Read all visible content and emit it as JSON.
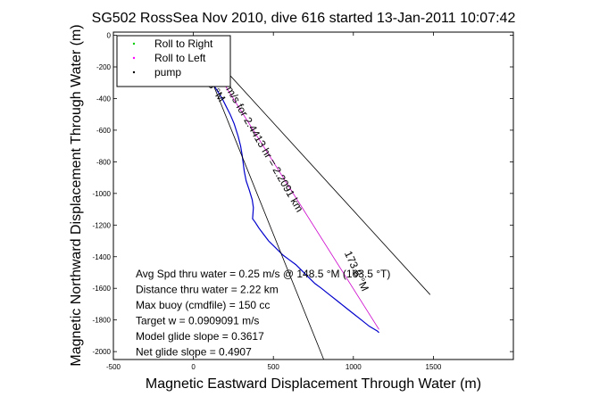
{
  "chart_data": {
    "type": "line",
    "title": "SG502 RossSea Nov 2010, dive 616 started 13-Jan-2011 10:07:42",
    "xlabel": "Magnetic Eastward Displacement Through Water (m)",
    "ylabel": "Magnetic Northward Displacement Through Water (m)",
    "xlim": [
      -500,
      2000
    ],
    "ylim": [
      -2050,
      20
    ],
    "xticks": [
      -500,
      0,
      500,
      1000,
      1500
    ],
    "yticks": [
      0,
      -200,
      -400,
      -600,
      -800,
      -1000,
      -1200,
      -1400,
      -1600,
      -1800,
      -2000
    ],
    "legend": {
      "position": "top-left",
      "entries": [
        {
          "label": "Roll to Right",
          "color": "#00cc00"
        },
        {
          "label": "Roll to Left",
          "color": "#ff00ff"
        },
        {
          "label": "pump",
          "color": "#000000"
        }
      ]
    },
    "series": [
      {
        "kind": "track",
        "color": "#0000cc",
        "x": [
          10,
          30,
          50,
          70,
          90,
          110,
          130,
          155,
          180,
          205,
          230,
          255,
          280,
          295,
          305,
          310,
          318,
          330,
          350,
          368,
          375,
          372,
          370,
          385,
          410,
          440,
          470,
          500,
          530,
          560,
          600,
          640,
          680,
          720,
          760,
          800,
          850,
          900,
          950,
          1000,
          1050,
          1100,
          1150,
          1160
        ],
        "y": [
          -10,
          -70,
          -140,
          -200,
          -250,
          -290,
          -320,
          -360,
          -400,
          -450,
          -500,
          -560,
          -640,
          -700,
          -760,
          -800,
          -860,
          -920,
          -980,
          -1040,
          -1090,
          -1130,
          -1160,
          -1180,
          -1220,
          -1260,
          -1300,
          -1330,
          -1360,
          -1390,
          -1420,
          -1450,
          -1490,
          -1530,
          -1570,
          -1600,
          -1640,
          -1680,
          -1720,
          -1760,
          -1800,
          -1840,
          -1870,
          -1880
        ]
      },
      {
        "kind": "heading",
        "color": "#cc00cc",
        "x": [
          0,
          1160
        ],
        "y": [
          0,
          -1860
        ]
      },
      {
        "kind": "cone",
        "color": "#000000",
        "x": [
          0,
          815
        ],
        "y": [
          0,
          -2050
        ]
      },
      {
        "kind": "cone",
        "color": "#000000",
        "x": [
          0,
          1480
        ],
        "y": [
          0,
          -1640
        ]
      }
    ],
    "annotations": [
      {
        "text": "173.8 °M",
        "x": 1000,
        "y": -1500,
        "rotation": 65
      },
      {
        "text": "0.136 m/s for 2.4413 hr = 2.2091 km",
        "x": 380,
        "y": -650,
        "rotation": 60
      },
      {
        "text": "99.8 °M",
        "x": 100,
        "y": -330,
        "rotation": 55
      }
    ],
    "stats": [
      "Avg Spd thru water =  0.25 m/s @ 148.5   °M (163.5 °T)",
      "Distance thru water =  2.22 km",
      "Max buoy (cmdfile) = 150 cc",
      "Target w = 0.0909091 m/s",
      "Model glide slope = 0.3617",
      "Net glide slope = 0.4907"
    ]
  }
}
